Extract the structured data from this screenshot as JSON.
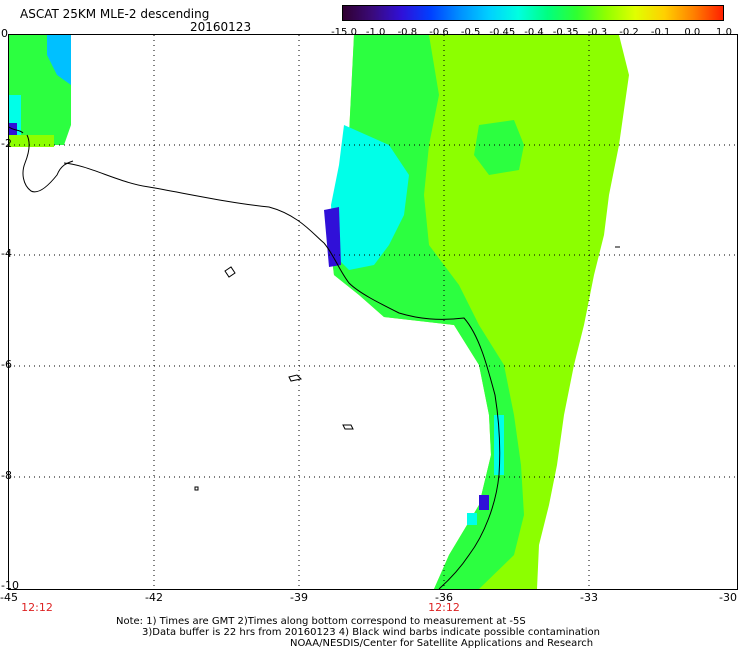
{
  "header": {
    "title": "ASCAT 25KM MLE-2 descending",
    "date": "20160123"
  },
  "colorbar": {
    "labels": [
      "-15.0",
      "-1.0",
      "-0.8",
      "-0.6",
      "-0.5",
      "-0.45",
      "-0.4",
      "-0.35",
      "-0.3",
      "-0.2",
      "-0.1",
      "0.0",
      "1.0"
    ],
    "colors": [
      "#300030",
      "#3a0a7a",
      "#3010d8",
      "#0040ff",
      "#0090ff",
      "#00d0ff",
      "#00ffe0",
      "#00ff80",
      "#30ff30",
      "#90ff00",
      "#e0ff00",
      "#ffd000",
      "#ff8000",
      "#ff2000"
    ]
  },
  "axes": {
    "lat_labels": [
      "0",
      "-2",
      "-4",
      "-6",
      "-8",
      "-10"
    ],
    "lon_labels": [
      "-45",
      "-42",
      "-39",
      "-36",
      "-33",
      "-30"
    ],
    "times": [
      "12:12",
      "12:12"
    ]
  },
  "notes": {
    "line1": "Note: 1) Times are GMT 2)Times along bottom correspond to measurement at -5S",
    "line2": "3)Data buffer is 22 hrs from 20160123 4) Black wind barbs indicate possible contamination",
    "line3": "NOAA/NESDIS/Center for Satellite Applications and Research"
  }
}
